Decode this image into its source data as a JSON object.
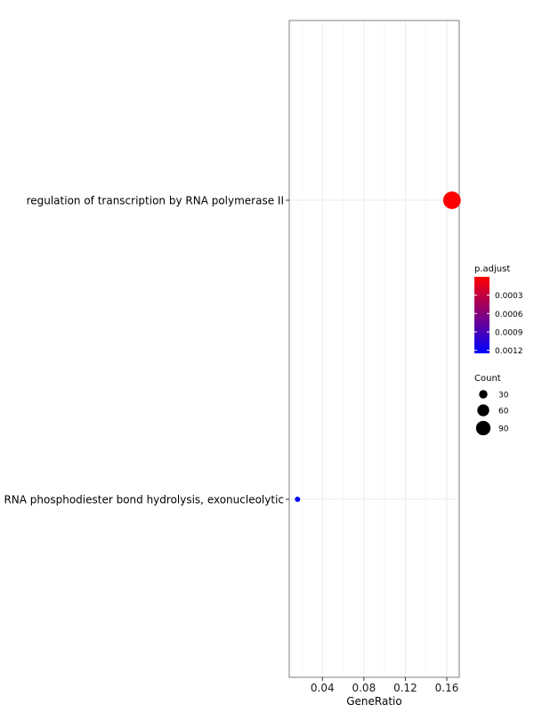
{
  "chart_data": {
    "type": "scatter",
    "xlabel": "GeneRatio",
    "xlim": [
      0.008,
      0.172
    ],
    "x_ticks": [
      0.04,
      0.08,
      0.12,
      0.16
    ],
    "x_tick_labels": [
      "0.04",
      "0.08",
      "0.12",
      "0.16"
    ],
    "categories": [
      "regulation of transcription by RNA polymerase II",
      "RNA phosphodiester bond hydrolysis, exonucleolytic"
    ],
    "points": [
      {
        "category": "regulation of transcription by RNA polymerase II",
        "x": 0.165,
        "count": 98,
        "p_adjust": 1e-05
      },
      {
        "category": "RNA phosphodiester bond hydrolysis, exonucleolytic",
        "x": 0.016,
        "count": 9,
        "p_adjust": 0.00125
      }
    ],
    "grid": true,
    "color_legend": {
      "title": "p.adjust",
      "low_color": "#FF0000",
      "high_color": "#0000FF",
      "range": [
        0.0,
        0.00125
      ],
      "ticks": [
        0.0003,
        0.0006,
        0.0009,
        0.0012
      ],
      "tick_labels": [
        "0.0003",
        "0.0006",
        "0.0009",
        "0.0012"
      ]
    },
    "size_legend": {
      "title": "Count",
      "values": [
        30,
        60,
        90
      ],
      "labels": [
        "30",
        "60",
        "90"
      ]
    },
    "legend_position": "right"
  }
}
